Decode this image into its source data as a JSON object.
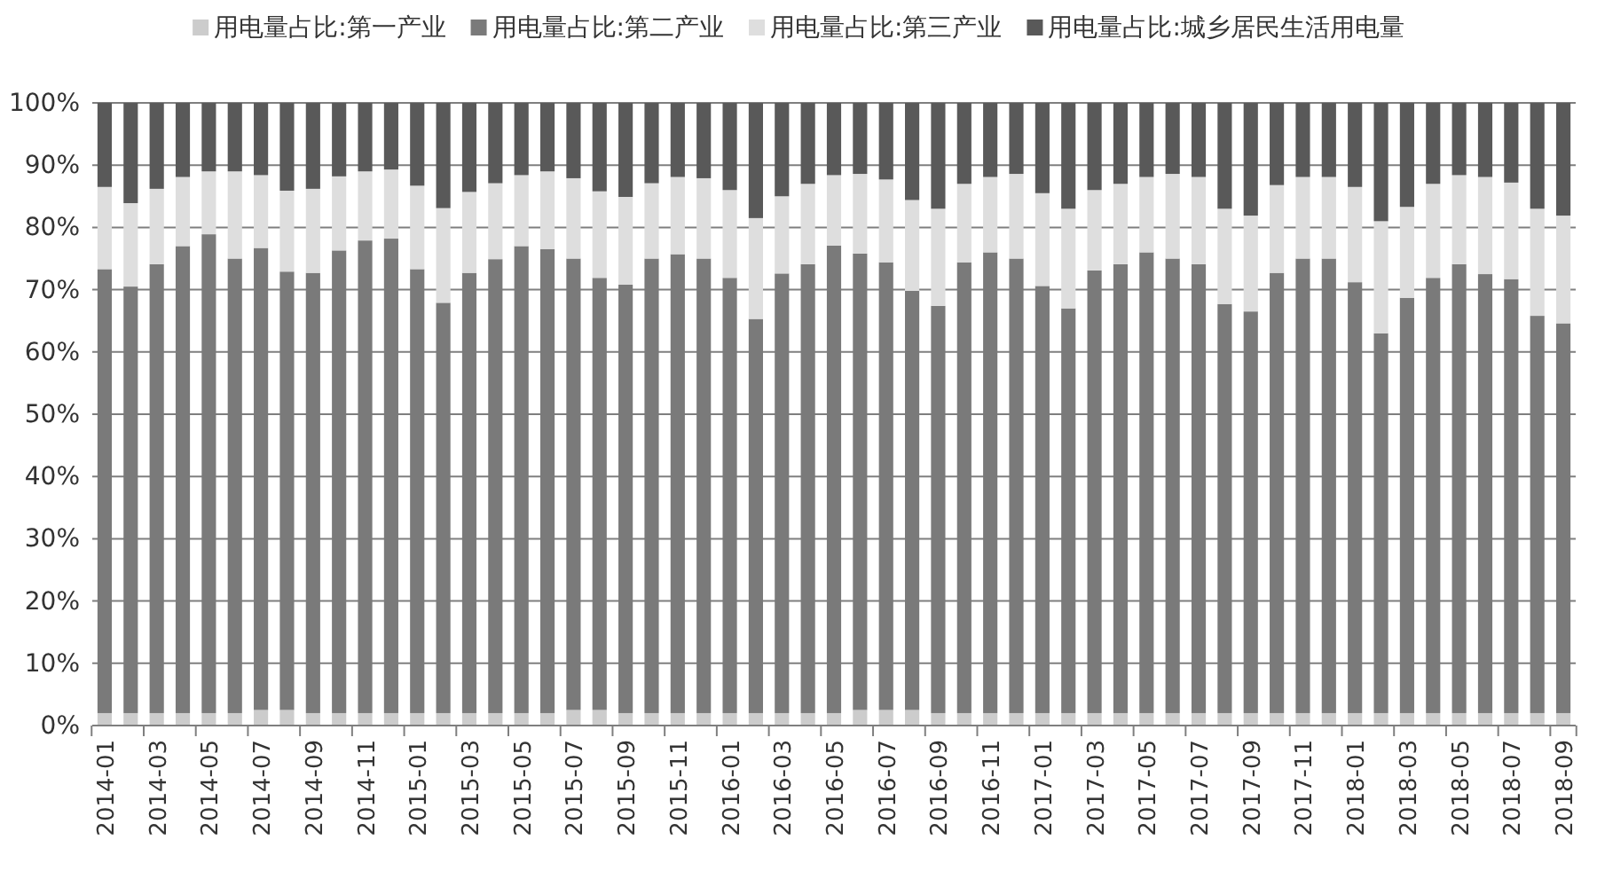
{
  "chart_data": {
    "type": "bar",
    "stacked": true,
    "legend": "top",
    "grid": "y",
    "categories": [
      "2014-01",
      null,
      "2014-03",
      null,
      "2014-05",
      null,
      "2014-07",
      null,
      "2014-09",
      null,
      "2014-11",
      null,
      "2015-01",
      null,
      "2015-03",
      null,
      "2015-05",
      null,
      "2015-07",
      null,
      "2015-09",
      null,
      "2015-11",
      null,
      "2016-01",
      null,
      "2016-03",
      null,
      "2016-05",
      null,
      "2016-07",
      null,
      "2016-09",
      null,
      "2016-11",
      null,
      "2017-01",
      null,
      "2017-03",
      null,
      "2017-05",
      null,
      "2017-07",
      null,
      "2017-09",
      null,
      "2017-11",
      null,
      "2018-01",
      null,
      "2018-03",
      null,
      "2018-05",
      null,
      "2018-07",
      null,
      "2018-09"
    ],
    "ylim": [
      0,
      100
    ],
    "yticks": [
      {
        "value": 0,
        "label": "0%"
      },
      {
        "value": 10,
        "label": "10%"
      },
      {
        "value": 20,
        "label": "20%"
      },
      {
        "value": 30,
        "label": "30%"
      },
      {
        "value": 40,
        "label": "40%"
      },
      {
        "value": 50,
        "label": "50%"
      },
      {
        "value": 60,
        "label": "60%"
      },
      {
        "value": 70,
        "label": "70%"
      },
      {
        "value": 80,
        "label": "80%"
      },
      {
        "value": 90,
        "label": "90%"
      },
      {
        "value": 100,
        "label": "100%"
      }
    ],
    "series": [
      {
        "name": "用电量占比:第一产业",
        "color": "#cccccc",
        "values": [
          2,
          2,
          2,
          2,
          2,
          2,
          2.5,
          2.5,
          2,
          2,
          2,
          2,
          2,
          2,
          2,
          2,
          2,
          2,
          2.5,
          2.5,
          2,
          2,
          2,
          2,
          2,
          2,
          2,
          2,
          2,
          2.5,
          2.5,
          2.5,
          2,
          2,
          2,
          2,
          2,
          2,
          2,
          2,
          2,
          2,
          2,
          2,
          2,
          2,
          2,
          2,
          2,
          2,
          2,
          2,
          2,
          2,
          2,
          2,
          2
        ]
      },
      {
        "name": "用电量占比:第二产业",
        "color": "#7a7a7a",
        "values": [
          71.3,
          68.5,
          72.1,
          75.0,
          76.9,
          73.0,
          74.2,
          70.4,
          70.7,
          74.3,
          75.9,
          76.2,
          71.3,
          65.9,
          70.7,
          72.9,
          75.0,
          74.5,
          72.5,
          69.4,
          68.8,
          73.0,
          73.7,
          73.0,
          69.9,
          63.3,
          70.6,
          72.1,
          75.1,
          73.3,
          71.9,
          67.3,
          65.4,
          72.4,
          74.0,
          73.0,
          68.6,
          65.0,
          71.1,
          72.1,
          74.0,
          73.0,
          72.1,
          65.7,
          64.5,
          70.7,
          73.0,
          73.0,
          69.2,
          61.0,
          66.7,
          69.9,
          72.1,
          70.5,
          69.7,
          63.8,
          62.6
        ]
      },
      {
        "name": "用电量占比:第三产业",
        "color": "#dedede",
        "values": [
          13.2,
          13.4,
          12.1,
          11.1,
          10.1,
          14.0,
          11.7,
          13.0,
          13.5,
          11.9,
          11.1,
          11.1,
          13.4,
          15.2,
          13.0,
          12.2,
          11.4,
          12.5,
          12.9,
          13.9,
          14.1,
          12.1,
          12.4,
          12.9,
          14.1,
          16.2,
          12.4,
          12.9,
          11.3,
          12.8,
          13.3,
          14.6,
          15.6,
          12.6,
          12.1,
          13.6,
          14.9,
          16.0,
          12.9,
          12.9,
          12.1,
          13.6,
          14.0,
          15.3,
          15.4,
          14.1,
          13.1,
          13.1,
          15.3,
          18.0,
          14.6,
          15.1,
          14.3,
          15.6,
          15.5,
          17.2,
          17.3
        ]
      },
      {
        "name": "用电量占比:城乡居民生活用电量",
        "color": "#595959",
        "values": [
          13.5,
          16.1,
          13.8,
          11.9,
          11.0,
          11.0,
          11.6,
          14.1,
          13.8,
          11.8,
          11.0,
          10.7,
          13.3,
          16.9,
          14.3,
          12.9,
          11.6,
          11.0,
          12.1,
          14.2,
          15.1,
          12.9,
          11.9,
          12.1,
          14.0,
          18.5,
          15.0,
          13.0,
          11.6,
          11.4,
          12.3,
          15.6,
          17.0,
          13.0,
          11.9,
          11.4,
          14.5,
          17.0,
          14.0,
          13.0,
          11.9,
          11.4,
          11.9,
          17.0,
          18.1,
          13.2,
          11.9,
          11.9,
          13.5,
          19.0,
          16.7,
          13.0,
          11.6,
          11.9,
          12.8,
          17.0,
          18.1
        ]
      }
    ]
  }
}
